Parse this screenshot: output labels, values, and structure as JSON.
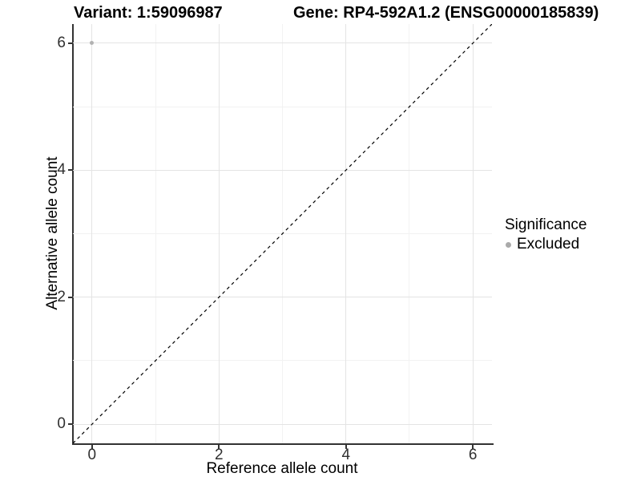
{
  "figure": {
    "title_left": "Variant: 1:59096987",
    "title_right": "Gene: RP4-592A1.2 (ENSG00000185839)"
  },
  "chart_data": {
    "type": "scatter",
    "title_left": "Variant: 1:59096987",
    "title_right": "Gene: RP4-592A1.2 (ENSG00000185839)",
    "xlabel": "Reference allele count",
    "ylabel": "Alternative allele count",
    "xlim": [
      -0.3,
      6.3
    ],
    "ylim": [
      -0.3,
      6.3
    ],
    "x_ticks": [
      0,
      2,
      4,
      6
    ],
    "y_ticks": [
      0,
      2,
      4,
      6
    ],
    "grid": {
      "x_minor": [
        1,
        3,
        5
      ],
      "y_minor": [
        1,
        3,
        5
      ]
    },
    "series": [
      {
        "name": "Excluded",
        "color": "#b2b2b2",
        "points": [
          {
            "x": 0,
            "y": 6
          }
        ]
      }
    ],
    "reference_line": {
      "type": "identity",
      "style": "dashed",
      "color": "#000000"
    },
    "legend": {
      "title": "Significance",
      "position": "right",
      "entries": [
        {
          "label": "Excluded",
          "color": "#aaaaaa"
        }
      ]
    },
    "colors": {
      "grid_major": "#e4e4e4",
      "grid_minor": "#f2f2f2",
      "axis": "#333333",
      "tick_text": "#303030",
      "point": "#b2b2b2"
    }
  }
}
